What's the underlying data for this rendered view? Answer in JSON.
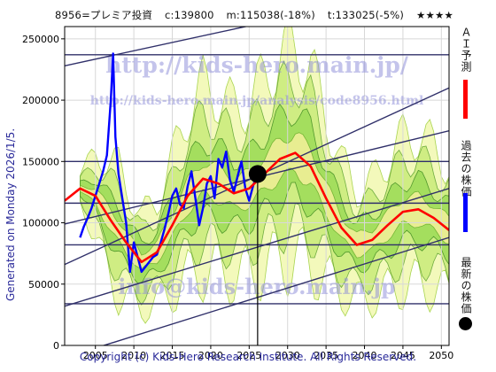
{
  "header": {
    "title": "8956=プレミア投資",
    "current": "c:139800",
    "mid": "m:115038(-18%)",
    "target": "t:133025(-5%)",
    "stars": "★★★★"
  },
  "side_text": "Generated on Monday 2026/1/5.",
  "footer": "Copyright (c) Kids-Hero Research Institute. All Rights Reserved.",
  "watermarks": {
    "url": "http://kids-hero.main.jp/",
    "analysis": "http://kids-hero.main.jp/analysis/code8956.html",
    "email": "info@kids-hero.main.jp"
  },
  "legend": [
    {
      "label": "ＡＩ予測",
      "color": "#ff0000"
    },
    {
      "label": "過去の株価",
      "color": "#0000ff"
    },
    {
      "label": "最新の株価",
      "color": "#000000"
    }
  ],
  "chart_data": {
    "type": "line",
    "xlim": [
      2001,
      2051
    ],
    "ylim": [
      0,
      260000
    ],
    "xticks": [
      2005,
      2010,
      2015,
      2020,
      2025,
      2030,
      2035,
      2040,
      2045,
      2050
    ],
    "yticks": [
      0,
      50000,
      100000,
      150000,
      200000,
      250000
    ],
    "grid": true,
    "horizontal_levels": [
      237000,
      150000,
      116000,
      82000,
      34000
    ],
    "trend_lines": [
      {
        "x": [
          2001,
          2026
        ],
        "y": [
          228000,
          262000
        ]
      },
      {
        "x": [
          2001,
          2051
        ],
        "y": [
          66000,
          210000
        ]
      },
      {
        "x": [
          2001,
          2051
        ],
        "y": [
          99000,
          175000
        ]
      },
      {
        "x": [
          2001,
          2051
        ],
        "y": [
          32000,
          128000
        ]
      },
      {
        "x": [
          2001,
          2051
        ],
        "y": [
          -10000,
          88000
        ]
      }
    ],
    "latest_point": {
      "x": 2026.1,
      "y": 139800
    },
    "series": [
      {
        "name": "ＡＩ予測",
        "color": "#ff0000",
        "x": [
          2001,
          2003,
          2005,
          2007,
          2009,
          2011,
          2013,
          2015,
          2017,
          2019,
          2021,
          2023,
          2025,
          2027,
          2029,
          2031,
          2033,
          2035,
          2037,
          2039,
          2041,
          2043,
          2045,
          2047,
          2049,
          2051
        ],
        "values": [
          118000,
          128000,
          122000,
          102000,
          84000,
          68000,
          76000,
          98000,
          122000,
          136000,
          132000,
          124000,
          128000,
          140000,
          152000,
          157000,
          146000,
          120000,
          96000,
          82000,
          86000,
          98000,
          109000,
          111000,
          104000,
          94000
        ]
      },
      {
        "name": "過去の株価",
        "color": "#0000ff",
        "x": [
          2003.0,
          2003.5,
          2004.0,
          2004.5,
          2005.0,
          2005.5,
          2006.0,
          2006.5,
          2007.0,
          2007.3,
          2007.6,
          2008.0,
          2008.5,
          2009.0,
          2009.5,
          2010.0,
          2010.5,
          2011.0,
          2011.5,
          2012.0,
          2012.5,
          2013.0,
          2013.5,
          2014.0,
          2014.5,
          2015.0,
          2015.5,
          2016.0,
          2016.5,
          2017.0,
          2017.5,
          2018.0,
          2018.5,
          2019.0,
          2019.5,
          2020.0,
          2020.5,
          2021.0,
          2021.5,
          2022.0,
          2022.5,
          2023.0,
          2023.5,
          2024.0,
          2024.5,
          2025.0,
          2025.5,
          2026.0
        ],
        "values": [
          88000,
          97000,
          104000,
          112000,
          122000,
          132000,
          142000,
          155000,
          200000,
          238000,
          170000,
          140000,
          120000,
          100000,
          60000,
          84000,
          72000,
          60000,
          64000,
          68000,
          72000,
          74000,
          84000,
          95000,
          108000,
          122000,
          128000,
          115000,
          112000,
          130000,
          142000,
          120000,
          98000,
          112000,
          132000,
          138000,
          120000,
          152000,
          145000,
          158000,
          135000,
          125000,
          138000,
          150000,
          128000,
          118000,
          130000,
          139800
        ]
      }
    ]
  }
}
